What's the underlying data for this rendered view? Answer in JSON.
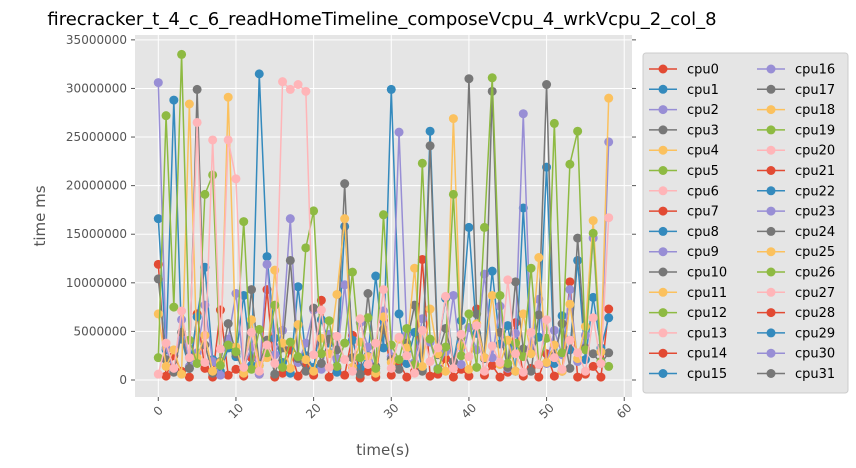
{
  "chart_data": {
    "type": "line",
    "title": "firecracker_t_4_c_6_readHomeTimeline_composeVcpu_4_wrkVcpu_2_col_8",
    "xlabel": "time(s)",
    "ylabel": "time ms",
    "xlim": [
      -3,
      61
    ],
    "ylim": [
      -1750000,
      35500000
    ],
    "x_ticks": [
      0,
      10,
      20,
      30,
      40,
      50,
      60
    ],
    "x_tick_labels": [
      "0",
      "10",
      "20",
      "30",
      "40",
      "50",
      "60"
    ],
    "y_ticks": [
      0,
      5000000,
      10000000,
      15000000,
      20000000,
      25000000,
      30000000,
      35000000
    ],
    "y_tick_labels": [
      "0",
      "5000000",
      "10000000",
      "15000000",
      "20000000",
      "25000000",
      "30000000",
      "35000000"
    ],
    "grid": true,
    "markers": true,
    "legend_position": "right, outside plot area",
    "legend_columns": 2,
    "x": [
      0,
      1,
      2,
      3,
      4,
      5,
      6,
      7,
      8,
      9,
      10,
      11,
      12,
      13,
      14,
      15,
      16,
      17,
      18,
      19,
      20,
      21,
      22,
      23,
      24,
      25,
      26,
      27,
      28,
      29,
      30,
      31,
      32,
      33,
      34,
      35,
      36,
      37,
      38,
      39,
      40,
      41,
      42,
      43,
      44,
      45,
      46,
      47,
      48,
      49,
      50,
      51,
      52,
      53,
      54,
      55,
      56,
      57,
      58
    ],
    "series": [
      {
        "name": "cpu0",
        "color": "#E24A33",
        "values": [
          11900000,
          400000,
          2500000,
          900000,
          300000,
          6800000,
          1200000,
          300000,
          7200000,
          500000,
          1100000,
          400000,
          2300000,
          600000,
          9300000,
          300000,
          700000,
          3100000,
          400000,
          1600000,
          500000,
          8200000,
          300000,
          1200000,
          500000,
          4600000,
          200000,
          900000,
          300000,
          6100000,
          500000,
          1800000,
          300000,
          900000,
          12400000,
          400000,
          600000,
          2200000,
          300000,
          1100000,
          400000,
          7300000,
          500000,
          1500000,
          300000,
          800000,
          5900000,
          400000,
          1200000,
          300000,
          2700000,
          400000,
          900000,
          10100000,
          300000,
          600000,
          1400000,
          300000,
          7300000
        ]
      },
      {
        "name": "cpu1",
        "color": "#348ABD",
        "values": [
          16600000,
          3100000,
          28800000,
          4200000,
          1200000,
          6500000,
          11600000,
          2100000,
          900000,
          3300000,
          2400000,
          8700000,
          1500000,
          31500000,
          12700000,
          4300000,
          1800000,
          700000,
          9600000,
          2500000,
          1300000,
          6200000,
          3800000,
          800000,
          15800000,
          4100000,
          1200000,
          2500000,
          10700000,
          3300000,
          29900000,
          6800000,
          1700000,
          4900000,
          1100000,
          25600000,
          3200000,
          8400000,
          1900000,
          6100000,
          15700000,
          4800000,
          2300000,
          11200000,
          3700000,
          5600000,
          900000,
          17700000,
          2800000,
          4400000,
          21900000,
          1700000,
          6600000,
          3100000,
          12300000,
          2100000,
          8500000,
          3300000,
          6400000
        ]
      },
      {
        "name": "cpu2",
        "color": "#988ED5",
        "values": [
          30600000,
          3300000,
          900000,
          6200000,
          1400000,
          2800000,
          7700000,
          1900000,
          500000,
          4200000,
          8900000,
          1300000,
          3400000,
          600000,
          11900000,
          2600000,
          5100000,
          16600000,
          1800000,
          3800000,
          7200000,
          1100000,
          4700000,
          2200000,
          9800000,
          1300000,
          5900000,
          3400000,
          800000,
          7100000,
          2400000,
          25500000,
          4600000,
          1800000,
          6300000,
          3900000,
          1200000,
          2900000,
          8700000,
          1600000,
          5400000,
          3100000,
          10900000,
          2300000,
          7600000,
          1200000,
          4800000,
          27400000,
          3300000,
          8300000,
          1700000,
          5100000,
          2600000,
          9300000,
          1900000,
          4600000,
          14600000,
          1800000,
          24500000
        ]
      },
      {
        "name": "cpu3",
        "color": "#777777",
        "values": [
          10400000,
          2100000,
          800000,
          4900000,
          1200000,
          29900000,
          3600000,
          700000,
          1900000,
          5800000,
          2700000,
          800000,
          9300000,
          1500000,
          4100000,
          600000,
          3300000,
          12300000,
          2200000,
          900000,
          7400000,
          1700000,
          4200000,
          3100000,
          20200000,
          2300000,
          600000,
          8900000,
          1400000,
          5200000,
          2100000,
          1100000,
          3800000,
          7700000,
          900000,
          24100000,
          2600000,
          5300000,
          1900000,
          4400000,
          31000000,
          6800000,
          2200000,
          29700000,
          4900000,
          1300000,
          10100000,
          3200000,
          900000,
          6700000,
          30400000,
          2500000,
          5800000,
          1200000,
          14600000,
          3300000,
          2700000,
          1700000,
          2800000
        ]
      },
      {
        "name": "cpu4",
        "color": "#FBC15E",
        "values": [
          6800000,
          1400000,
          3100000,
          600000,
          28400000,
          2300000,
          4600000,
          900000,
          1800000,
          29100000,
          3400000,
          700000,
          6200000,
          1500000,
          2300000,
          11300000,
          3800000,
          1200000,
          5700000,
          2100000,
          900000,
          4300000,
          2700000,
          8800000,
          16600000,
          1300000,
          3900000,
          2400000,
          700000,
          6500000,
          1800000,
          4200000,
          3300000,
          11500000,
          1400000,
          7300000,
          2700000,
          900000,
          26900000,
          3500000,
          1100000,
          5800000,
          2300000,
          8700000,
          1600000,
          4100000,
          900000,
          6800000,
          2700000,
          12600000,
          1800000,
          3600000,
          900000,
          7800000,
          2200000,
          5500000,
          16400000,
          2900000,
          29000000
        ]
      },
      {
        "name": "cpu5",
        "color": "#8EBA42",
        "values": [
          2300000,
          27200000,
          7500000,
          33500000,
          4100000,
          1700000,
          19100000,
          21100000,
          1500000,
          3600000,
          2900000,
          16300000,
          1100000,
          5200000,
          2800000,
          7700000,
          1300000,
          3900000,
          2400000,
          13600000,
          17400000,
          2700000,
          6100000,
          1400000,
          3800000,
          11100000,
          2300000,
          6400000,
          1200000,
          17000000,
          3600000,
          2100000,
          5300000,
          1600000,
          22300000,
          4200000,
          1100000,
          3400000,
          19100000,
          2500000,
          6800000,
          1300000,
          15700000,
          31100000,
          8700000,
          1700000,
          3800000,
          2400000,
          11500000,
          1600000,
          4300000,
          26400000,
          2800000,
          22200000,
          25600000,
          3100000,
          15100000,
          1900000,
          1400000
        ]
      },
      {
        "name": "cpu6",
        "color": "#FFB5B8",
        "values": [
          600000,
          3800000,
          1200000,
          7100000,
          2300000,
          26500000,
          1800000,
          24700000,
          3200000,
          24700000,
          20700000,
          1300000,
          4900000,
          900000,
          3600000,
          1700000,
          30700000,
          29900000,
          30400000,
          29700000,
          2600000,
          7200000,
          1300000,
          4500000,
          2100000,
          900000,
          6300000,
          1600000,
          3800000,
          9300000,
          1200000,
          4400000,
          2500000,
          700000,
          5100000,
          1900000,
          3300000,
          8600000,
          1200000,
          4700000,
          2400000,
          5600000,
          900000,
          3500000,
          1800000,
          10300000,
          2700000,
          800000,
          4900000,
          1600000,
          6200000,
          2300000,
          1100000,
          4100000,
          2800000,
          900000,
          6400000,
          1700000,
          16700000
        ]
      }
    ]
  },
  "legend": {
    "col1": [
      "cpu0",
      "cpu1",
      "cpu2",
      "cpu3",
      "cpu4",
      "cpu5",
      "cpu6",
      "cpu7",
      "cpu8",
      "cpu9",
      "cpu10",
      "cpu11",
      "cpu12",
      "cpu13",
      "cpu14",
      "cpu15"
    ],
    "col2": [
      "cpu16",
      "cpu17",
      "cpu18",
      "cpu19",
      "cpu20",
      "cpu21",
      "cpu22",
      "cpu23",
      "cpu24",
      "cpu25",
      "cpu26",
      "cpu27",
      "cpu28",
      "cpu29",
      "cpu30",
      "cpu31"
    ]
  }
}
